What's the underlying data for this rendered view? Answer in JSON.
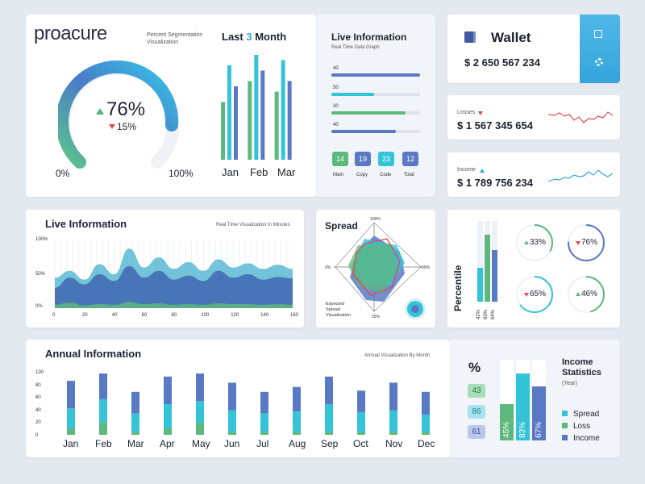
{
  "segmentation": {
    "logo_text": "proacure",
    "subtitle_line1": "Percent Segmentation",
    "subtitle_line2": "Visualization",
    "main_value": "76%",
    "secondary_value": "15%",
    "min_label": "0%",
    "max_label": "100%",
    "gauge_level": 0.76
  },
  "last_month": {
    "title_prefix": "Last",
    "title_number": "3",
    "title_suffix": "Month",
    "months": [
      "Jan",
      "Feb",
      "Mar"
    ]
  },
  "live_info_top": {
    "title": "Live Information",
    "subtitle": "Real Time Data Graph",
    "bars": [
      {
        "label": "40",
        "value": 1.0,
        "color": "#5a79c4"
      },
      {
        "label": "50",
        "value": 0.48,
        "color": "#35c3d8"
      },
      {
        "label": "30",
        "value": 0.84,
        "color": "#5cb87c"
      },
      {
        "label": "40",
        "value": 0.73,
        "color": "#5a79c4"
      }
    ],
    "badges": [
      {
        "value": "14",
        "label": "Main",
        "color": "#5cb87c"
      },
      {
        "value": "19",
        "label": "Copy",
        "color": "#5a79c4"
      },
      {
        "value": "23",
        "label": "Code",
        "color": "#35c3d8"
      },
      {
        "value": "12",
        "label": "Total",
        "color": "#5a79c4"
      }
    ]
  },
  "wallet": {
    "title": "Wallet",
    "amount": "$ 2 650 567 234"
  },
  "losses": {
    "label": "Losses",
    "amount": "$ 1 567 345 654",
    "color": "#e04a52"
  },
  "income": {
    "label": "Income",
    "amount": "$ 1 789 756 234",
    "color": "#35a9d8"
  },
  "live_info_mid": {
    "title": "Live Information",
    "subtitle": "Real Time Visualization In Minutes",
    "y_ticks": [
      "100%",
      "50%",
      "0%"
    ],
    "x_ticks": [
      "0",
      "20",
      "40",
      "60",
      "80",
      "100",
      "120",
      "140",
      "160"
    ]
  },
  "spread": {
    "title": "Spread",
    "top_label": "100%",
    "left_label": "0%",
    "right_label": "50%",
    "bottom_label": "25%",
    "caption_line1": "Expected",
    "caption_line2": "Spread",
    "caption_line3": "Visualization"
  },
  "percentile": {
    "title": "Percentile",
    "bars": [
      {
        "label": "42%",
        "value": 0.42,
        "color": "#35c3d8"
      },
      {
        "label": "83%",
        "value": 0.83,
        "color": "#5cb87c"
      },
      {
        "label": "64%",
        "value": 0.64,
        "color": "#5a79c4"
      }
    ],
    "rings": [
      {
        "value": "33%",
        "dir": "up",
        "color": "#5cb87c",
        "level": 0.33
      },
      {
        "value": "76%",
        "dir": "down",
        "color": "#5a79c4",
        "level": 0.76
      },
      {
        "value": "65%",
        "dir": "down",
        "color": "#35c3d8",
        "level": 0.65
      },
      {
        "value": "46%",
        "dir": "up",
        "color": "#5cb87c",
        "level": 0.46
      }
    ]
  },
  "annual": {
    "title": "Annual Information",
    "subtitle": "Annual Visualization By Month",
    "y_ticks": [
      "100",
      "80",
      "60",
      "40",
      "20",
      "0"
    ]
  },
  "income_stats": {
    "percent_symbol": "%",
    "boxes": [
      "43",
      "86",
      "61"
    ],
    "bars": [
      {
        "label": "45%",
        "value": 0.45,
        "color": "#5cb87c"
      },
      {
        "label": "83%",
        "value": 0.83,
        "color": "#35c3d8"
      },
      {
        "label": "67%",
        "value": 0.67,
        "color": "#5a79c4"
      }
    ],
    "title_line1": "Income",
    "title_line2": "Statistics",
    "title_line3": "(Year)",
    "legend": [
      {
        "label": "Spread",
        "color": "#35c3d8"
      },
      {
        "label": "Loss",
        "color": "#5cb87c"
      },
      {
        "label": "Income",
        "color": "#5a79c4"
      }
    ]
  },
  "chart_data": [
    {
      "type": "bar",
      "title": "Last 3 Month",
      "categories": [
        "Jan",
        "Feb",
        "Mar"
      ],
      "series": [
        {
          "values": [
            55,
            75,
            65
          ],
          "color": "#5cb87c"
        },
        {
          "values": [
            90,
            100,
            95
          ],
          "color": "#35c3d8"
        },
        {
          "values": [
            70,
            85,
            75
          ],
          "color": "#5a79c4"
        }
      ],
      "ylim": [
        0,
        100
      ]
    },
    {
      "type": "area",
      "title": "Live Information",
      "x": [
        0,
        10,
        20,
        30,
        40,
        50,
        60,
        70,
        80,
        90,
        100,
        110,
        120,
        130,
        140,
        150,
        160
      ],
      "series": [
        {
          "values": [
            45,
            55,
            42,
            65,
            50,
            88,
            60,
            75,
            58,
            68,
            55,
            72,
            60,
            66,
            58,
            64,
            58
          ],
          "color": "#5ab8d4"
        },
        {
          "values": [
            30,
            45,
            35,
            50,
            40,
            62,
            45,
            55,
            42,
            48,
            40,
            55,
            45,
            50,
            42,
            46,
            44
          ],
          "color": "#3f67b0"
        },
        {
          "values": [
            5,
            8,
            4,
            6,
            5,
            9,
            6,
            7,
            5,
            6,
            5,
            7,
            6,
            6,
            5,
            6,
            5
          ],
          "color": "#5cb87c"
        }
      ],
      "ylim": [
        0,
        100
      ],
      "xlim": [
        0,
        160
      ]
    },
    {
      "type": "bar",
      "title": "Annual Information",
      "categories": [
        "Jan",
        "Feb",
        "Mar",
        "Apr",
        "May",
        "Jun",
        "Jul",
        "Aug",
        "Sep",
        "Oct",
        "Nov",
        "Dec"
      ],
      "series": [
        {
          "values": [
            10,
            20,
            5,
            10,
            20,
            5,
            5,
            5,
            5,
            5,
            5,
            5
          ],
          "color": "#5cb87c"
        },
        {
          "values": [
            33,
            38,
            30,
            40,
            35,
            35,
            30,
            33,
            45,
            32,
            35,
            28
          ],
          "color": "#35c3d8"
        },
        {
          "values": [
            45,
            45,
            35,
            45,
            48,
            45,
            35,
            40,
            45,
            35,
            45,
            37
          ],
          "color": "#5a79c4"
        }
      ],
      "ylim": [
        0,
        100
      ]
    }
  ]
}
